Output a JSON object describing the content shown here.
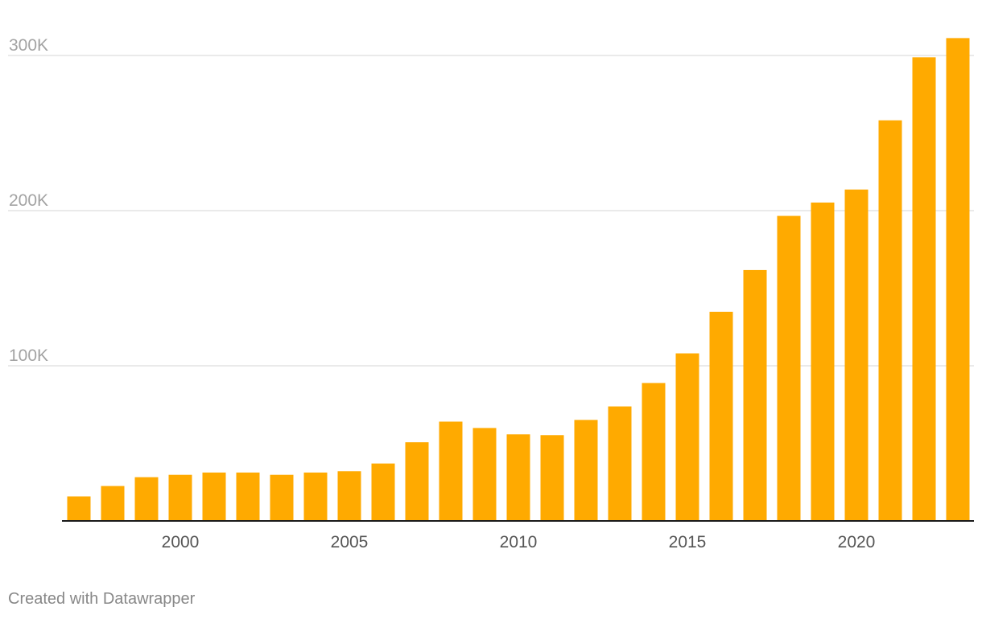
{
  "chart_data": {
    "type": "bar",
    "title": "",
    "xlabel": "",
    "ylabel": "",
    "x": [
      1997,
      1998,
      1999,
      2000,
      2001,
      2002,
      2003,
      2004,
      2005,
      2006,
      2007,
      2008,
      2009,
      2010,
      2011,
      2012,
      2013,
      2014,
      2015,
      2016,
      2017,
      2018,
      2019,
      2020,
      2021,
      2022,
      2023
    ],
    "values": [
      15800,
      22500,
      28200,
      29700,
      31200,
      31200,
      29700,
      31200,
      32000,
      37000,
      50700,
      64000,
      59900,
      55800,
      55300,
      65100,
      73800,
      88900,
      108000,
      134800,
      161700,
      196600,
      205200,
      213600,
      258200,
      298800,
      311200
    ],
    "ylim": [
      0,
      320000
    ],
    "y_ticks": [
      {
        "value": 100000,
        "label": "100K"
      },
      {
        "value": 200000,
        "label": "200K"
      },
      {
        "value": 300000,
        "label": "300K"
      }
    ],
    "x_ticks": [
      {
        "value": 2000,
        "label": "2000"
      },
      {
        "value": 2005,
        "label": "2005"
      },
      {
        "value": 2010,
        "label": "2010"
      },
      {
        "value": 2015,
        "label": "2015"
      },
      {
        "value": 2020,
        "label": "2020"
      }
    ],
    "bar_color": "#ffaa00",
    "grid": true
  },
  "footer": {
    "credit": "Created with Datawrapper"
  }
}
